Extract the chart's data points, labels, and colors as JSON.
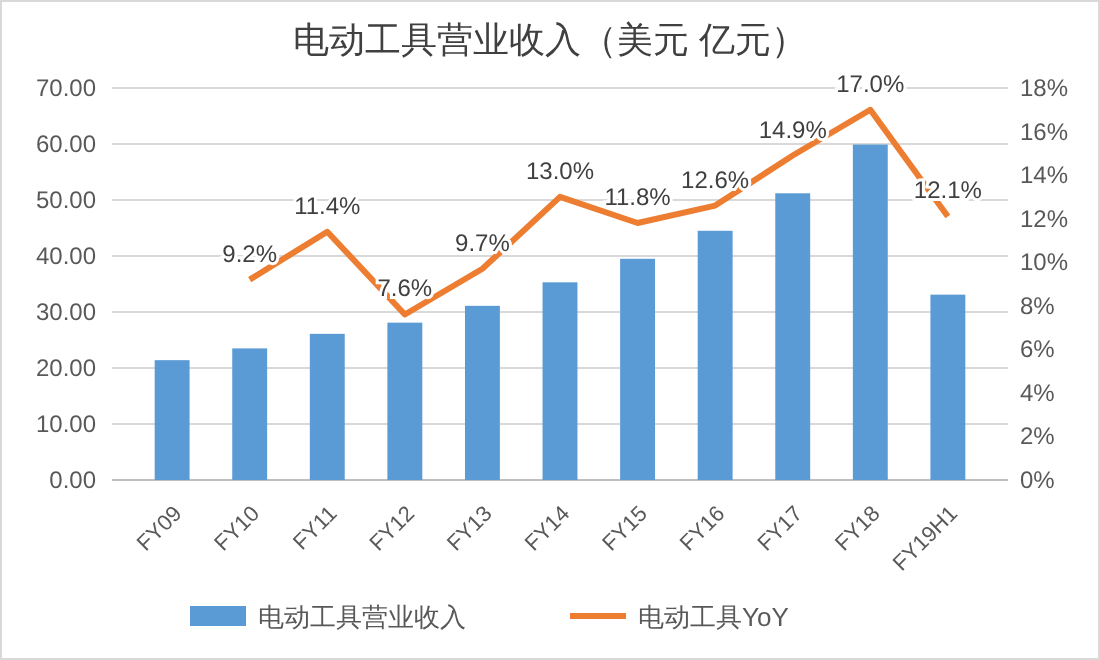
{
  "chart_data": {
    "type": "bar",
    "title": "电动工具营业收入（美元 亿元）",
    "categories": [
      "FY09",
      "FY10",
      "FY11",
      "FY12",
      "FY13",
      "FY14",
      "FY15",
      "FY16",
      "FY17",
      "FY18",
      "FY19H1"
    ],
    "series": [
      {
        "name": "电动工具营业收入",
        "color": "#5b9bd5",
        "values": [
          21.4,
          23.5,
          26.1,
          28.1,
          31.1,
          35.3,
          39.5,
          44.5,
          51.2,
          59.9,
          33.1
        ]
      },
      {
        "name": "电动工具YoY",
        "type": "line",
        "axis": "y2",
        "color": "#ed7d31",
        "values": [
          null,
          9.2,
          11.4,
          7.6,
          9.7,
          13.0,
          11.8,
          12.6,
          14.9,
          17.0,
          12.1
        ],
        "value_labels": [
          null,
          "9.2%",
          "11.4%",
          "7.6%",
          "9.7%",
          "13.0%",
          "11.8%",
          "12.6%",
          "14.9%",
          "17.0%",
          "12.1%"
        ]
      }
    ],
    "ylim": [
      0,
      70
    ],
    "yticks": [
      {
        "value": 0,
        "label": "0.00"
      },
      {
        "value": 10,
        "label": "10.00"
      },
      {
        "value": 20,
        "label": "20.00"
      },
      {
        "value": 30,
        "label": "30.00"
      },
      {
        "value": 40,
        "label": "40.00"
      },
      {
        "value": 50,
        "label": "50.00"
      },
      {
        "value": 60,
        "label": "60.00"
      },
      {
        "value": 70,
        "label": "70.00"
      }
    ],
    "y2lim": [
      0,
      18
    ],
    "y2ticks": [
      {
        "value": 0,
        "label": "0%"
      },
      {
        "value": 2,
        "label": "2%"
      },
      {
        "value": 4,
        "label": "4%"
      },
      {
        "value": 6,
        "label": "6%"
      },
      {
        "value": 8,
        "label": "8%"
      },
      {
        "value": 10,
        "label": "10%"
      },
      {
        "value": 12,
        "label": "12%"
      },
      {
        "value": 14,
        "label": "14%"
      },
      {
        "value": 16,
        "label": "16%"
      },
      {
        "value": 18,
        "label": "18%"
      }
    ],
    "grid": "y",
    "legend": "bottom",
    "marker": "none",
    "line_style": "solid"
  }
}
